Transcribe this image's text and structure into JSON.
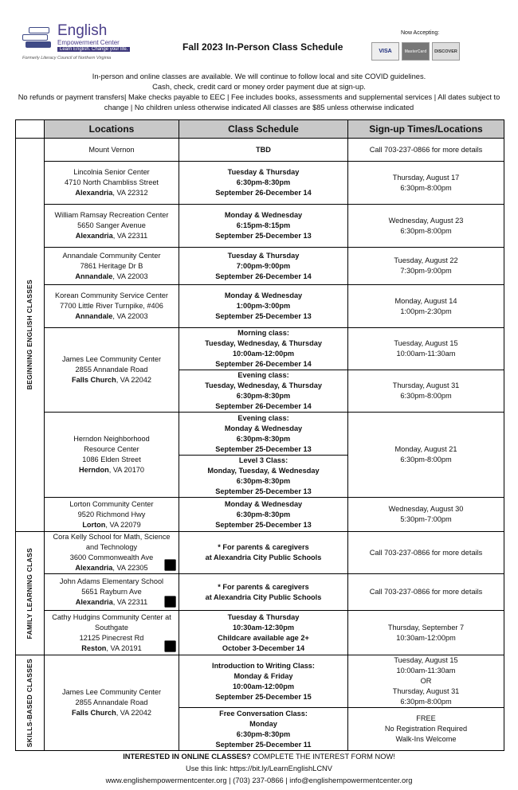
{
  "header": {
    "logo": {
      "line1": "English",
      "line2": "Empowerment Center",
      "tagline": "Learn English. Change your life.",
      "former": "Formerly Literacy Council of Northern Virginia"
    },
    "title": "Fall 2023 In-Person Class Schedule",
    "accepting": "Now Accepting:",
    "cards": [
      "VISA",
      "MasterCard",
      "DISCOVER"
    ]
  },
  "intro": [
    "In-person and online classes are available. We will continue to follow local and site COVID guidelines.",
    "Cash, check, credit card or money order payment due at sign-up.",
    "No refunds or payment transfers| Make checks payable to EEC | Fee includes books, assessments and supplemental services | All dates subject to change | No children unless otherwise indicated All classes are $85 unless otherwise indicated"
  ],
  "table": {
    "columns": [
      "Locations",
      "Class Schedule",
      "Sign-up Times/Locations"
    ],
    "groups": [
      {
        "label": "BEGINNING ENGLISH CLASSES",
        "rows": [
          {
            "h": 29,
            "loc": [
              "Mount Vernon"
            ],
            "sessions": [
              {
                "sched": [
                  "TBD"
                ],
                "signup": [
                  "Call 703-237-0866 for more details"
                ]
              }
            ]
          },
          {
            "h": 54,
            "loc": [
              "Lincolnia Senior Center",
              "4710 North Chambliss Street"
            ],
            "city": "Alexandria",
            "rest": ", VA 22312",
            "sessions": [
              {
                "sched": [
                  "Tuesday & Thursday",
                  "6:30pm-8:30pm",
                  "September 26-December 14"
                ],
                "signup": [
                  "Thursday, August 17",
                  "6:30pm-8:00pm"
                ]
              }
            ]
          },
          {
            "h": 54,
            "loc": [
              "William Ramsay Recreation Center",
              "5650 Sanger Avenue"
            ],
            "city": "Alexandria",
            "rest": ", VA 22311",
            "sessions": [
              {
                "sched": [
                  "Monday & Wednesday",
                  "6:15pm-8:15pm",
                  "September 25-December 13"
                ],
                "signup": [
                  "Wednesday, August 23",
                  "6:30pm-8:00pm"
                ]
              }
            ]
          },
          {
            "h": 47,
            "loc": [
              "Annandale Community Center",
              "7861 Heritage Dr B"
            ],
            "city": "Annandale",
            "rest": ", VA 22003",
            "sessions": [
              {
                "sched": [
                  "Tuesday & Thursday",
                  "7:00pm-9:00pm",
                  "September 26-December 14"
                ],
                "signup": [
                  "Tuesday, August 22",
                  "7:30pm-9:00pm"
                ]
              }
            ]
          },
          {
            "h": 54,
            "loc": [
              "Korean Community Service Center",
              "7700 Little River Turnpike, #406"
            ],
            "city": "Annandale",
            "rest": ", VA 22003",
            "sessions": [
              {
                "sched": [
                  "Monday & Wednesday",
                  "1:00pm-3:00pm",
                  "September 25-December 13"
                ],
                "signup": [
                  "Monday, August 14",
                  "1:00pm-2:30pm"
                ]
              }
            ]
          },
          {
            "h": 53,
            "loc": [
              "James Lee Community Center",
              "2855 Annandale Road"
            ],
            "city": "Falls Church",
            "rest": ", VA 22042",
            "sessions": [
              {
                "h": 53,
                "sched": [
                  "Morning class:",
                  "Tuesday, Wednesday, & Thursday",
                  "10:00am-12:00pm",
                  "September 26-December 14"
                ],
                "signup": [
                  "Tuesday, August 15",
                  "10:00am-11:30am"
                ]
              },
              {
                "h": 53,
                "sched": [
                  "Evening class:",
                  "Tuesday, Wednesday, & Thursday",
                  "6:30pm-8:30pm",
                  "September 26-December 14"
                ],
                "signup": [
                  "Thursday, August 31",
                  "6:30pm-8:00pm"
                ]
              }
            ]
          },
          {
            "h": 54,
            "loc": [
              "Herndon Neighborhood",
              "Resource Center",
              "1086 Elden Street"
            ],
            "city": "Herndon",
            "rest": ", VA 20170",
            "signup_span": [
              "Monday, August 21",
              "6:30pm-8:00pm"
            ],
            "sessions": [
              {
                "h": 54,
                "sched": [
                  "Evening class:",
                  "Monday & Wednesday",
                  "6:30pm-8:30pm",
                  "September 25-December 13"
                ]
              },
              {
                "h": 53,
                "sched": [
                  "Level 3 Class:",
                  "Monday, Tuesday, & Wednesday",
                  "6:30pm-8:30pm",
                  "September 25-December 13"
                ]
              }
            ]
          },
          {
            "h": 43,
            "loc": [
              "Lorton Community Center",
              "9520 Richmond Hwy"
            ],
            "city": "Lorton",
            "rest": ", VA 22079",
            "sessions": [
              {
                "sched": [
                  "Monday & Wednesday",
                  "6:30pm-8:30pm",
                  "September 25-December 13"
                ],
                "signup": [
                  "Wednesday, August 30",
                  "5:30pm-7:00pm"
                ]
              }
            ]
          }
        ]
      },
      {
        "label": "FAMILY LEARNING CLASS",
        "rows": [
          {
            "h": 51,
            "family": true,
            "loc": [
              "Cora Kelly School for Math, Science",
              "and Technology",
              "3600 Commonwealth Ave"
            ],
            "city": "Alexandria",
            "rest": ", VA 22305",
            "sessions": [
              {
                "sched": [
                  "* For parents & caregivers",
                  "at Alexandria City Public Schools"
                ],
                "signup": [
                  "Call 703-237-0866 for more details"
                ]
              }
            ]
          },
          {
            "h": 46,
            "family": true,
            "loc": [
              "John Adams Elementary School",
              "5651 Rayburn Ave"
            ],
            "city": "Alexandria",
            "rest": ", VA 22311",
            "sessions": [
              {
                "sched": [
                  "* For parents & caregivers",
                  "at Alexandria City Public Schools"
                ],
                "signup": [
                  "Call 703-237-0866 for more details"
                ]
              }
            ]
          },
          {
            "h": 56,
            "family": true,
            "loc": [
              "Cathy Hudgins Community Center at",
              "Southgate",
              "12125 Pinecrest Rd"
            ],
            "city": "Reston",
            "rest": ", VA 20191",
            "sessions": [
              {
                "sched": [
                  "Tuesday & Thursday",
                  "10:30am-12:30pm",
                  "Childcare available age 2+",
                  "October 3-December 14"
                ],
                "signup": [
                  "Thursday, September 7",
                  "10:30am-12:00pm"
                ]
              }
            ]
          }
        ]
      },
      {
        "label": "SKILLS-BASED CLASSES",
        "rows": [
          {
            "h": 66,
            "loc": [
              "James Lee Community Center",
              "2855 Annandale Road"
            ],
            "city": "Falls Church",
            "rest": ", VA 22042",
            "sessions": [
              {
                "h": 66,
                "sched": [
                  "Introduction to Writing Class:",
                  "Monday & Friday",
                  "10:00am-12:00pm",
                  "September 25-December 15"
                ],
                "signup": [
                  "Tuesday, August 15",
                  "10:00am-11:30am",
                  "OR",
                  "Thursday, August 31",
                  "6:30pm-8:00pm"
                ]
              },
              {
                "h": 54,
                "sched": [
                  "Free Conversation Class:",
                  "Monday",
                  "6:30pm-8:30pm",
                  "September 25-December 11"
                ],
                "signup": [
                  "FREE",
                  "No Registration Required",
                  "Walk-Ins Welcome"
                ]
              }
            ]
          }
        ]
      }
    ]
  },
  "footer": {
    "cta_bold": "INTERESTED IN ONLINE CLASSES?",
    "cta": " COMPLETE THE INTEREST FORM NOW!",
    "link": "Use this link:  https://bit.ly/LearnEnglishLCNV",
    "contact": "www.englishempowermentcenter.org | (703) 237-0866 | info@englishempowermentcenter.org"
  }
}
